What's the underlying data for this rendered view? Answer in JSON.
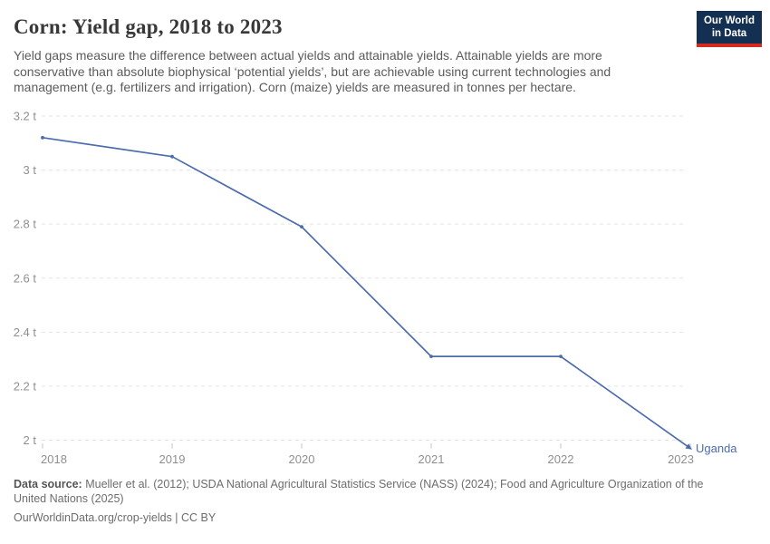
{
  "header": {
    "title": "Corn: Yield gap, 2018 to 2023",
    "subtitle": "Yield gaps measure the difference between actual yields and attainable yields. Attainable yields are more\nconservative than absolute biophysical ‘potential yields’, but are achievable using current technologies and\nmanagement (e.g. fertilizers and irrigation). Corn (maize) yields are measured in tonnes per hectare.",
    "logo": {
      "line1": "Our World",
      "line2": "in Data",
      "bg_color": "#132f51",
      "accent_color": "#d42b21"
    }
  },
  "chart_data": {
    "type": "line",
    "title": "Corn: Yield gap, 2018 to 2023",
    "x": [
      2018,
      2019,
      2020,
      2021,
      2022,
      2023
    ],
    "x_tick_labels": [
      "2018",
      "2019",
      "2020",
      "2021",
      "2022",
      "2023"
    ],
    "y_ticks": [
      2,
      2.2,
      2.4,
      2.6,
      2.8,
      3,
      3.2
    ],
    "y_tick_labels": [
      "2 t",
      "2.2 t",
      "2.4 t",
      "2.6 t",
      "2.8 t",
      "3 t",
      "3.2 t"
    ],
    "ylim": [
      2.0,
      3.2
    ],
    "unit": "tonnes per hectare",
    "grid": "dashed-horizontal",
    "legend_position": "end-of-line-label",
    "series": [
      {
        "name": "Uganda",
        "values": [
          3.12,
          3.05,
          2.79,
          2.31,
          2.31,
          1.97
        ],
        "color": "#4c6cae"
      }
    ]
  },
  "footer": {
    "source_label": "Data source:",
    "source_text": " Mueller et al. (2012); USDA National Agricultural Statistics Service (NASS) (2024); Food and Agriculture Organization of the\nUnited Nations (2025)",
    "license_text": "OurWorldinData.org/crop-yields | CC BY"
  },
  "colors": {
    "line": "#4c6cae",
    "gridline": "#e3e3e3",
    "axis_text": "#8f8f8f",
    "tick_mark": "#c4c4c4",
    "title_text": "#383838",
    "subtitle_text": "#5b5b5b",
    "footer_text": "#6d6d6d"
  }
}
